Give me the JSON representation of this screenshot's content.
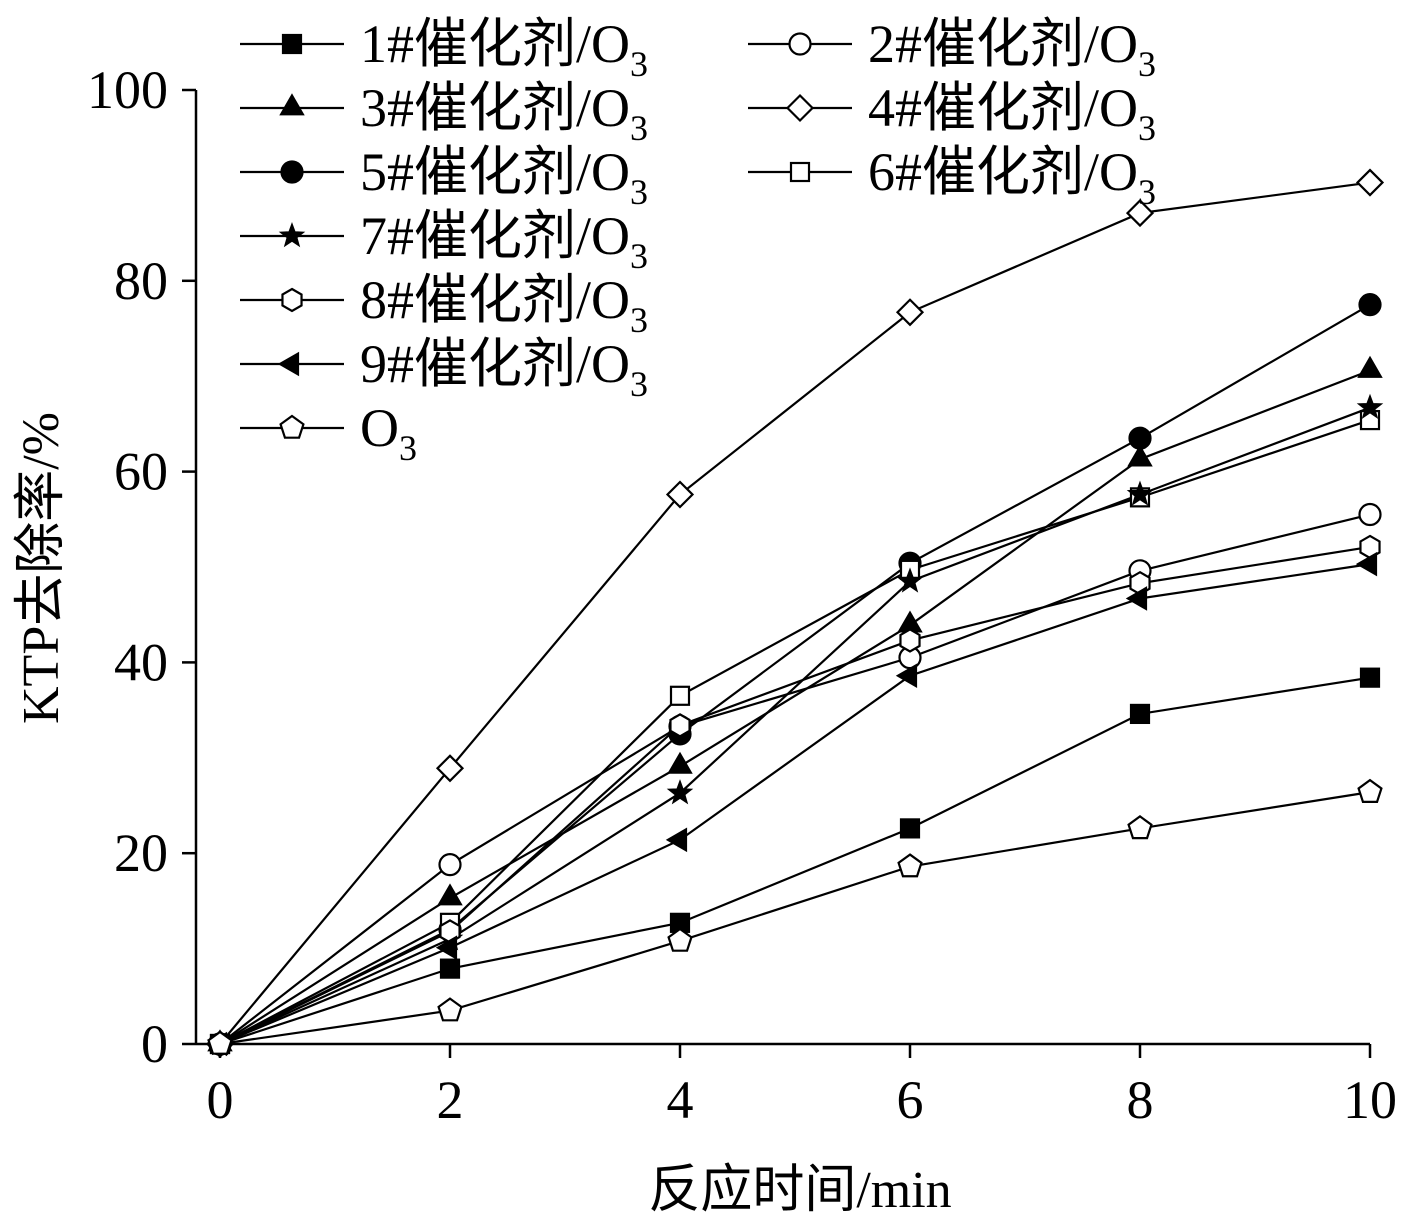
{
  "chart_data": {
    "type": "line",
    "xlabel": "反应时间/min",
    "ylabel": "KTP去除率/%",
    "xlim": [
      0,
      10
    ],
    "ylim": [
      0,
      100
    ],
    "x_ticks": [
      "0",
      "2",
      "4",
      "6",
      "8",
      "10"
    ],
    "y_ticks": [
      "0",
      "20",
      "40",
      "60",
      "80",
      "100"
    ],
    "x": [
      0,
      2,
      4,
      6,
      8,
      10
    ],
    "legend_position": "top-left",
    "grid": false,
    "series": [
      {
        "name": "1#催化剂/O3",
        "prefix": "1#催化剂/O",
        "sub": "3",
        "marker": "square-filled",
        "values": [
          0,
          7.9,
          12.7,
          22.6,
          34.6,
          38.4
        ]
      },
      {
        "name": "2#催化剂/O3",
        "prefix": "2#催化剂/O",
        "sub": "3",
        "marker": "circle-open",
        "values": [
          0,
          18.8,
          33.3,
          40.5,
          49.6,
          55.5
        ]
      },
      {
        "name": "3#催化剂/O3",
        "prefix": "3#催化剂/O",
        "sub": "3",
        "marker": "triangle-filled",
        "values": [
          0,
          15.3,
          29.1,
          43.9,
          61.3,
          70.6
        ]
      },
      {
        "name": "4#催化剂/O3",
        "prefix": "4#催化剂/O",
        "sub": "3",
        "marker": "diamond-open",
        "values": [
          0,
          28.9,
          57.6,
          76.7,
          87.1,
          90.3
        ]
      },
      {
        "name": "5#催化剂/O3",
        "prefix": "5#催化剂/O",
        "sub": "3",
        "marker": "circle-filled",
        "values": [
          0,
          12.0,
          32.5,
          50.4,
          63.5,
          77.5
        ]
      },
      {
        "name": "6#催化剂/O3",
        "prefix": "6#催化剂/O",
        "sub": "3",
        "marker": "square-open",
        "values": [
          0,
          12.7,
          36.5,
          49.7,
          57.3,
          65.4
        ]
      },
      {
        "name": "7#催化剂/O3",
        "prefix": "7#催化剂/O",
        "sub": "3",
        "marker": "star-filled",
        "values": [
          0,
          11.0,
          26.3,
          48.5,
          57.6,
          66.7
        ]
      },
      {
        "name": "8#催化剂/O3",
        "prefix": "8#催化剂/O",
        "sub": "3",
        "marker": "hexagon-open",
        "values": [
          0,
          11.8,
          33.4,
          42.3,
          48.3,
          52.1
        ]
      },
      {
        "name": "9#催化剂/O3",
        "prefix": "9#催化剂/O",
        "sub": "3",
        "marker": "triangle-left-filled",
        "values": [
          0,
          10.1,
          21.4,
          38.6,
          46.7,
          50.3
        ]
      },
      {
        "name": "O3",
        "prefix": "O",
        "sub": "3",
        "marker": "pentagon-open",
        "values": [
          0,
          3.5,
          10.8,
          18.6,
          22.6,
          26.4
        ]
      }
    ]
  }
}
